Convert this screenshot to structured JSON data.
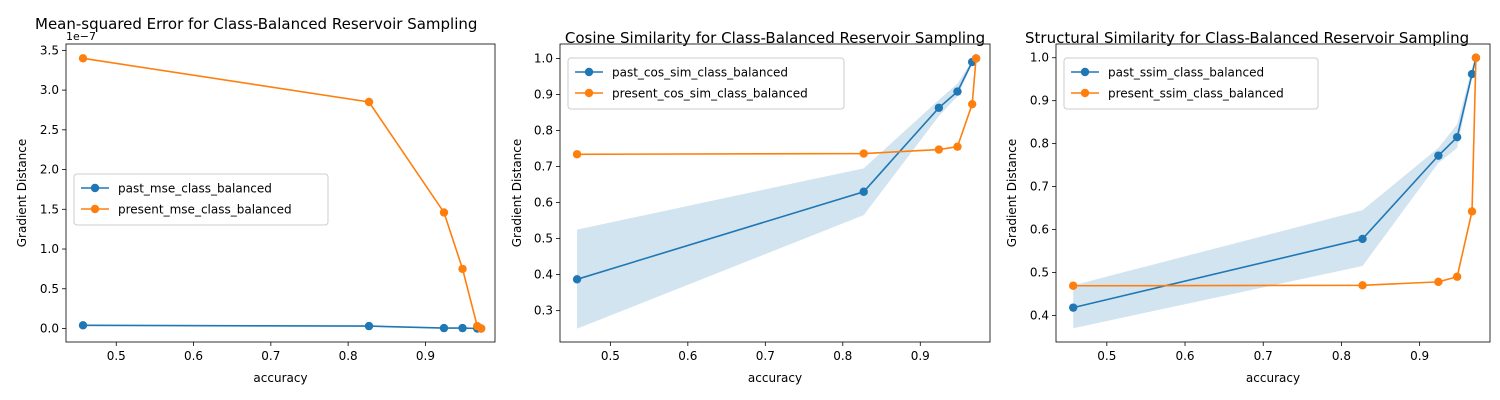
{
  "chart_data": [
    {
      "type": "line",
      "title": "Mean-squared Error for Class-Balanced Reservoir Sampling",
      "xlabel": "accuracy",
      "ylabel": "Gradient Distance",
      "offset_label": "1e−7",
      "xlim": [
        0.435,
        0.99
      ],
      "ylim": [
        -0.17,
        3.58
      ],
      "xticks": [
        0.5,
        0.6,
        0.7,
        0.8,
        0.9
      ],
      "xtick_labels": [
        "0.5",
        "0.6",
        "0.7",
        "0.8",
        "0.9"
      ],
      "yticks": [
        0.0,
        0.5,
        1.0,
        1.5,
        2.0,
        2.5,
        3.0,
        3.5
      ],
      "ytick_labels": [
        "0.0",
        "0.5",
        "1.0",
        "1.5",
        "2.0",
        "2.5",
        "3.0",
        "3.5"
      ],
      "legend_position": "center-left",
      "series": [
        {
          "name": "past_mse_class_balanced",
          "color": "#1f77b4",
          "x": [
            0.457,
            0.827,
            0.924,
            0.948,
            0.967,
            0.972
          ],
          "y": [
            0.04,
            0.03,
            0.005,
            0.005,
            0.0,
            0.0
          ]
        },
        {
          "name": "present_mse_class_balanced",
          "color": "#ff7f0e",
          "x": [
            0.457,
            0.827,
            0.924,
            0.948,
            0.967,
            0.972
          ],
          "y": [
            3.4,
            2.85,
            1.46,
            0.75,
            0.03,
            0.0
          ]
        }
      ]
    },
    {
      "type": "line",
      "title": "Cosine Similarity for Class-Balanced Reservoir Sampling",
      "xlabel": "accuracy",
      "ylabel": "Gradient Distance",
      "xlim": [
        0.435,
        0.99
      ],
      "ylim": [
        0.213,
        1.04
      ],
      "xticks": [
        0.5,
        0.6,
        0.7,
        0.8,
        0.9
      ],
      "xtick_labels": [
        "0.5",
        "0.6",
        "0.7",
        "0.8",
        "0.9"
      ],
      "yticks": [
        0.3,
        0.4,
        0.5,
        0.6,
        0.7,
        0.8,
        0.9,
        1.0
      ],
      "ytick_labels": [
        "0.3",
        "0.4",
        "0.5",
        "0.6",
        "0.7",
        "0.8",
        "0.9",
        "1.0"
      ],
      "legend_position": "upper-left",
      "band": {
        "series": 0,
        "color": "#1f77b4",
        "x": [
          0.457,
          0.827,
          0.924,
          0.948,
          0.967,
          0.972
        ],
        "lower": [
          0.25,
          0.565,
          0.84,
          0.895,
          0.985,
          1.0
        ],
        "upper": [
          0.525,
          0.695,
          0.885,
          0.93,
          0.995,
          1.0
        ]
      },
      "series": [
        {
          "name": "past_cos_sim_class_balanced",
          "color": "#1f77b4",
          "x": [
            0.457,
            0.827,
            0.924,
            0.948,
            0.967,
            0.972
          ],
          "y": [
            0.387,
            0.63,
            0.863,
            0.908,
            0.99,
            1.0
          ]
        },
        {
          "name": "present_cos_sim_class_balanced",
          "color": "#ff7f0e",
          "x": [
            0.457,
            0.827,
            0.924,
            0.948,
            0.967,
            0.972
          ],
          "y": [
            0.734,
            0.736,
            0.747,
            0.755,
            0.873,
            1.0
          ]
        }
      ]
    },
    {
      "type": "line",
      "title": "Structural Similarity for Class-Balanced Reservoir Sampling",
      "xlabel": "accuracy",
      "ylabel": "Gradient Distance",
      "xlim": [
        0.435,
        0.99
      ],
      "ylim": [
        0.338,
        1.032
      ],
      "xticks": [
        0.5,
        0.6,
        0.7,
        0.8,
        0.9
      ],
      "xtick_labels": [
        "0.5",
        "0.6",
        "0.7",
        "0.8",
        "0.9"
      ],
      "yticks": [
        0.4,
        0.5,
        0.6,
        0.7,
        0.8,
        0.9,
        1.0
      ],
      "ytick_labels": [
        "0.4",
        "0.5",
        "0.6",
        "0.7",
        "0.8",
        "0.9",
        "1.0"
      ],
      "legend_position": "upper-left",
      "band": {
        "series": 0,
        "color": "#1f77b4",
        "x": [
          0.457,
          0.827,
          0.924,
          0.948,
          0.967,
          0.972
        ],
        "lower": [
          0.37,
          0.515,
          0.755,
          0.79,
          0.955,
          1.0
        ],
        "upper": [
          0.47,
          0.645,
          0.79,
          0.845,
          0.975,
          1.0
        ]
      },
      "series": [
        {
          "name": "past_ssim_class_balanced",
          "color": "#1f77b4",
          "x": [
            0.457,
            0.827,
            0.924,
            0.948,
            0.967,
            0.972
          ],
          "y": [
            0.418,
            0.578,
            0.772,
            0.815,
            0.962,
            1.0
          ]
        },
        {
          "name": "present_ssim_class_balanced",
          "color": "#ff7f0e",
          "x": [
            0.457,
            0.827,
            0.924,
            0.948,
            0.967,
            0.972
          ],
          "y": [
            0.469,
            0.47,
            0.478,
            0.49,
            0.642,
            1.0
          ]
        }
      ]
    }
  ]
}
